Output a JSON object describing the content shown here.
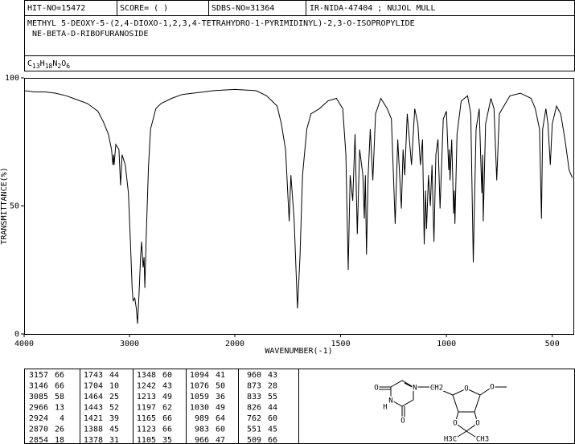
{
  "header": {
    "hit_no": "HIT-NO=15472",
    "score": "SCORE= (  )",
    "sdbs_no": "SDBS-NO=31364",
    "method": "IR-NIDA-47404 ; NUJOL MULL",
    "name_lines": [
      "METHYL 5-DEOXY-5-(2,4-DIOXO-1,2,3,4-TETRAHYDRO-1-PYRIMIDINYL)-2,3-O-ISOPROPYLIDE",
      " NE-BETA-D-RIBOFURANOSIDE"
    ],
    "formula": [
      "C",
      "13",
      "H",
      "18",
      "N",
      "2",
      "O",
      "6"
    ]
  },
  "chart_data": {
    "type": "line",
    "x_label": "WAVENUMBER(-1)",
    "y_label": "TRANSMITTANCE(%)",
    "color": "#000000",
    "xlim": [
      4000,
      400
    ],
    "ylim": [
      0,
      100
    ],
    "xticks": [
      4000,
      3000,
      2000,
      1500,
      1000,
      500
    ],
    "yticks": [
      0,
      50,
      100
    ],
    "x": [
      4000,
      3900,
      3800,
      3700,
      3600,
      3500,
      3400,
      3300,
      3250,
      3200,
      3170,
      3157,
      3150,
      3146,
      3130,
      3100,
      3085,
      3070,
      3040,
      3010,
      2990,
      2975,
      2966,
      2950,
      2935,
      2924,
      2910,
      2895,
      2885,
      2870,
      2862,
      2854,
      2840,
      2820,
      2800,
      2750,
      2700,
      2600,
      2500,
      2400,
      2200,
      2000,
      1900,
      1850,
      1800,
      1780,
      1760,
      1743,
      1735,
      1720,
      1704,
      1692,
      1680,
      1660,
      1640,
      1600,
      1560,
      1520,
      1490,
      1475,
      1464,
      1455,
      1443,
      1432,
      1421,
      1410,
      1395,
      1388,
      1383,
      1378,
      1370,
      1360,
      1348,
      1335,
      1310,
      1280,
      1260,
      1242,
      1230,
      1213,
      1205,
      1197,
      1185,
      1165,
      1150,
      1135,
      1123,
      1113,
      1105,
      1099,
      1094,
      1085,
      1076,
      1068,
      1059,
      1050,
      1040,
      1030,
      1015,
      1000,
      989,
      986,
      983,
      975,
      966,
      963,
      960,
      950,
      930,
      900,
      885,
      873,
      860,
      845,
      833,
      829,
      826,
      815,
      790,
      775,
      762,
      750,
      700,
      650,
      600,
      580,
      560,
      551,
      545,
      530,
      520,
      509,
      500,
      480,
      460,
      440,
      420,
      405
    ],
    "values": [
      95,
      94.5,
      94.5,
      94,
      93,
      91.5,
      90,
      87,
      83,
      78,
      72,
      66,
      70,
      66,
      74,
      72,
      58,
      70,
      66,
      55,
      35,
      18,
      13,
      14,
      10,
      4,
      15,
      30,
      36,
      26,
      30,
      18,
      40,
      65,
      80,
      88,
      90,
      92,
      93.5,
      94,
      95,
      95.5,
      95,
      93,
      89,
      82,
      72,
      44,
      62,
      45,
      10,
      30,
      62,
      80,
      86,
      88,
      91,
      92,
      88,
      70,
      25,
      62,
      52,
      78,
      39,
      72,
      62,
      45,
      62,
      31,
      62,
      80,
      60,
      86,
      92,
      88,
      84,
      43,
      76,
      49,
      72,
      62,
      86,
      66,
      88,
      82,
      66,
      76,
      35,
      56,
      41,
      62,
      50,
      66,
      36,
      70,
      76,
      49,
      84,
      87,
      64,
      72,
      60,
      76,
      47,
      56,
      43,
      78,
      91,
      93,
      86,
      28,
      80,
      88,
      55,
      70,
      44,
      82,
      92,
      88,
      60,
      86,
      93,
      94,
      92,
      88,
      80,
      45,
      80,
      88,
      82,
      66,
      82,
      89,
      86,
      76,
      64,
      61
    ]
  },
  "peak_table": [
    [
      [
        3157,
        66
      ],
      [
        3146,
        66
      ],
      [
        3085,
        58
      ],
      [
        2966,
        13
      ],
      [
        2924,
        4
      ],
      [
        2870,
        26
      ],
      [
        2854,
        18
      ]
    ],
    [
      [
        1743,
        44
      ],
      [
        1704,
        10
      ],
      [
        1464,
        25
      ],
      [
        1443,
        52
      ],
      [
        1421,
        39
      ],
      [
        1388,
        45
      ],
      [
        1378,
        31
      ]
    ],
    [
      [
        1348,
        60
      ],
      [
        1242,
        43
      ],
      [
        1213,
        49
      ],
      [
        1197,
        62
      ],
      [
        1165,
        66
      ],
      [
        1123,
        66
      ],
      [
        1105,
        35
      ]
    ],
    [
      [
        1094,
        41
      ],
      [
        1076,
        50
      ],
      [
        1059,
        36
      ],
      [
        1030,
        49
      ],
      [
        989,
        64
      ],
      [
        983,
        60
      ],
      [
        966,
        47
      ]
    ],
    [
      [
        960,
        43
      ],
      [
        873,
        28
      ],
      [
        833,
        55
      ],
      [
        826,
        44
      ],
      [
        762,
        60
      ],
      [
        551,
        45
      ],
      [
        509,
        66
      ]
    ]
  ],
  "structure": {
    "labels": [
      "O",
      "N",
      "N",
      "H",
      "O",
      "CH2",
      "O",
      "O",
      "O",
      "O",
      "H3C",
      "CH3"
    ]
  }
}
